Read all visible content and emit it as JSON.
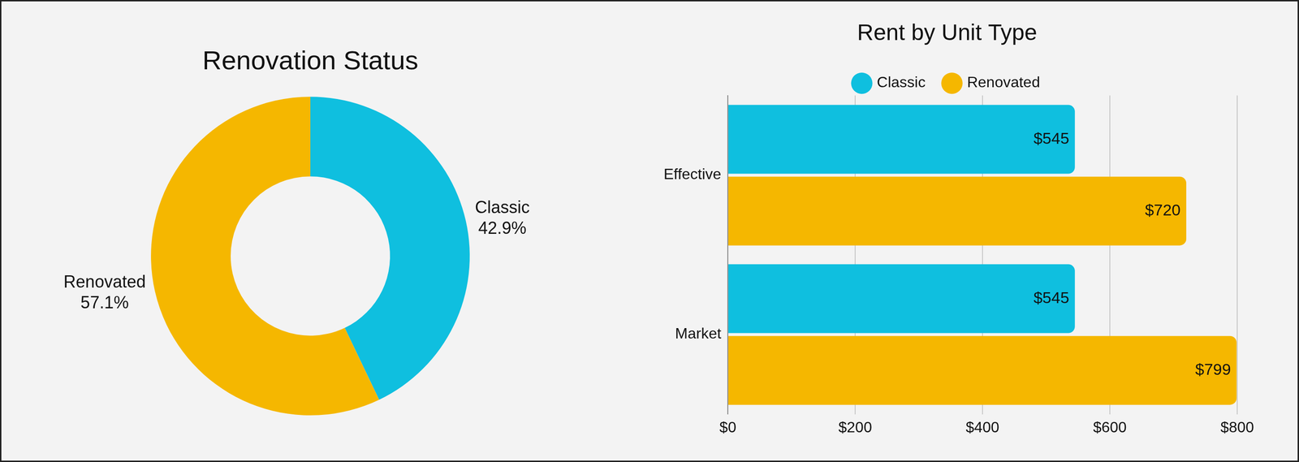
{
  "chart_data": [
    {
      "type": "doughnut",
      "title": "Renovation Status",
      "categories": [
        "Classic",
        "Renovated"
      ],
      "values": [
        42.9,
        57.1
      ],
      "value_labels": [
        "42.9%",
        "57.1%"
      ],
      "colors": [
        "#0fbfdf",
        "#f5b700"
      ],
      "data_labels": true
    },
    {
      "type": "bar",
      "title": "Rent by Unit Type",
      "orientation": "horizontal",
      "categories": [
        "Effective",
        "Market"
      ],
      "series": [
        {
          "name": "Classic",
          "color": "#0fbfdf",
          "values": [
            545,
            545
          ],
          "value_labels": [
            "$545",
            "$545"
          ]
        },
        {
          "name": "Renovated",
          "color": "#f5b700",
          "values": [
            720,
            799
          ],
          "value_labels": [
            "$720",
            "$799"
          ]
        }
      ],
      "xlim": [
        0,
        800
      ],
      "xticks": [
        {
          "value": 0,
          "label": "$0"
        },
        {
          "value": 200,
          "label": "$200"
        },
        {
          "value": 400,
          "label": "$400"
        },
        {
          "value": 600,
          "label": "$600"
        },
        {
          "value": 800,
          "label": "$800"
        }
      ],
      "grid": true,
      "legend": "top",
      "data_labels": true
    }
  ]
}
